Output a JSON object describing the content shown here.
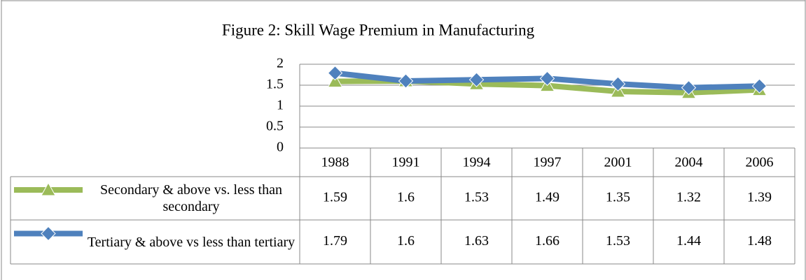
{
  "chart_data": {
    "type": "line",
    "title": "Figure 2: Skill Wage Premium in Manufacturing",
    "categories": [
      "1988",
      "1991",
      "1994",
      "1997",
      "2001",
      "2004",
      "2006"
    ],
    "series": [
      {
        "name": "Secondary & above vs. less than secondary",
        "color": "#9bbb59",
        "marker": "triangle",
        "values": [
          1.59,
          1.6,
          1.53,
          1.49,
          1.35,
          1.32,
          1.39
        ]
      },
      {
        "name": "Tertiary & above vs less than tertiary",
        "color": "#4f81bd",
        "marker": "diamond",
        "values": [
          1.79,
          1.6,
          1.63,
          1.66,
          1.53,
          1.44,
          1.48
        ]
      }
    ],
    "ylim": [
      0,
      2
    ],
    "yticks": [
      0,
      0.5,
      1,
      1.5,
      2
    ],
    "grid": true,
    "data_table": true
  }
}
